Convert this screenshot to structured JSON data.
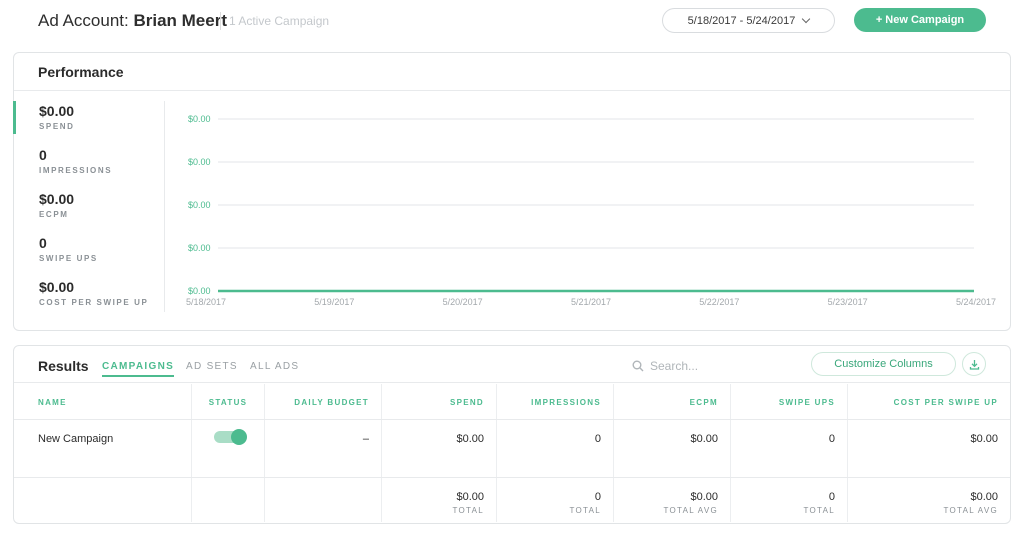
{
  "header": {
    "title_prefix": "Ad Account:",
    "account_name": "Brian Meert",
    "active_campaigns": "1 Active Campaign",
    "date_range": "5/18/2017 - 5/24/2017",
    "new_campaign_label": "+ New Campaign"
  },
  "performance": {
    "title": "Performance",
    "metrics": [
      {
        "value": "$0.00",
        "label": "SPEND"
      },
      {
        "value": "0",
        "label": "IMPRESSIONS"
      },
      {
        "value": "$0.00",
        "label": "ECPM"
      },
      {
        "value": "0",
        "label": "SWIPE UPS"
      },
      {
        "value": "$0.00",
        "label": "COST PER SWIPE UP"
      }
    ]
  },
  "chart_data": {
    "type": "line",
    "x": [
      "5/18/2017",
      "5/19/2017",
      "5/20/2017",
      "5/21/2017",
      "5/22/2017",
      "5/23/2017",
      "5/24/2017"
    ],
    "series": [
      {
        "values": [
          0,
          0,
          0,
          0,
          0,
          0,
          0
        ]
      }
    ],
    "y_tick_labels": [
      "$0.00",
      "$0.00",
      "$0.00",
      "$0.00",
      "$0.00"
    ],
    "grid": true,
    "line_color": "#4cbb8f"
  },
  "results": {
    "title": "Results",
    "tabs": [
      "CAMPAIGNS",
      "AD SETS",
      "ALL ADS"
    ],
    "search_placeholder": "Search...",
    "customize_label": "Customize Columns",
    "columns": [
      "NAME",
      "STATUS",
      "DAILY BUDGET",
      "SPEND",
      "IMPRESSIONS",
      "ECPM",
      "SWIPE UPS",
      "COST PER SWIPE UP"
    ],
    "rows": [
      {
        "name": "New Campaign",
        "status_on": true,
        "daily_budget": "–",
        "spend": "$0.00",
        "impressions": "0",
        "ecpm": "$0.00",
        "swipe_ups": "0",
        "cost_per_swipe_up": "$0.00"
      }
    ],
    "totals": {
      "spend": "$0.00",
      "spend_lbl": "TOTAL",
      "impressions": "0",
      "impressions_lbl": "TOTAL",
      "ecpm": "$0.00",
      "ecpm_lbl": "TOTAL AVG",
      "swipe_ups": "0",
      "swipe_ups_lbl": "TOTAL",
      "cost_per_swipe_up": "$0.00",
      "cost_per_swipe_up_lbl": "TOTAL AVG"
    }
  },
  "colors": {
    "accent": "#4cbb8f"
  },
  "icons": {
    "search": "search-icon",
    "download": "download-icon",
    "dropdown": "chevron-down-icon"
  }
}
